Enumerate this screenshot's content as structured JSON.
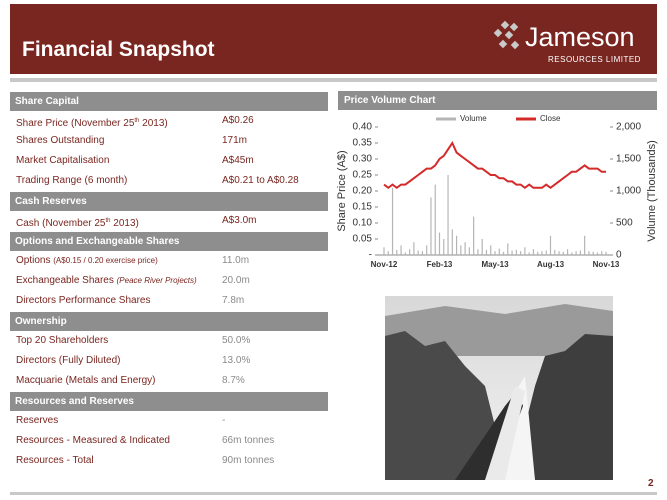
{
  "header": {
    "title": "Financial Snapshot",
    "logo": {
      "name": "Jameson",
      "subtitle": "RESOURCES LIMITED"
    }
  },
  "table": {
    "sections": [
      {
        "title": "Share Capital",
        "rows": [
          {
            "label": [
              "Share Price (November 25",
              "th",
              "  2013)"
            ],
            "value": "A$0.26"
          },
          {
            "label": [
              "Shares Outstanding"
            ],
            "value": "171m"
          },
          {
            "label": [
              "Market Capitalisation"
            ],
            "value": "A$45m"
          },
          {
            "label": [
              "Trading Range (6 month)"
            ],
            "value": "A$0.21 to A$0.28"
          }
        ]
      },
      {
        "title": "Cash Reserves",
        "rows": [
          {
            "label": [
              "Cash  (November 25",
              "th",
              "  2013)"
            ],
            "value": "A$3.0m"
          }
        ]
      },
      {
        "title": "Options and Exchangeable Shares",
        "rows": [
          {
            "label": [
              "Options  ",
              "(A$0.15 / 0.20  exercise price)"
            ],
            "value": "11.0m"
          },
          {
            "label": [
              "Exchangeable Shares ",
              "(Peace River Projects)"
            ],
            "value": "20.0m"
          },
          {
            "label": [
              "Directors Performance Shares"
            ],
            "value": "7.8m"
          }
        ]
      },
      {
        "title": "Ownership",
        "rows": [
          {
            "label": [
              "Top 20 Shareholders"
            ],
            "value": "50.0%"
          },
          {
            "label": [
              "Directors (Fully Diluted)"
            ],
            "value": "13.0%"
          },
          {
            "label": [
              "Macquarie (Metals and Energy)"
            ],
            "value": "8.7%"
          }
        ]
      },
      {
        "title": "Resources and Reserves",
        "rows": [
          {
            "label": [
              "Reserves"
            ],
            "value": "-"
          },
          {
            "label": [
              "Resources -  Measured & Indicated"
            ],
            "value": "66m tonnes"
          },
          {
            "label": [
              "Resources - Total"
            ],
            "value": "90m tonnes"
          }
        ]
      }
    ]
  },
  "chart_data": {
    "type": "line",
    "title": "Price Volume Chart",
    "ylabel": "Share Price (A$)",
    "y2label": "Volume (Thousands)",
    "categories": [
      "Nov-12",
      null,
      null,
      null,
      null,
      null,
      null,
      null,
      null,
      null,
      null,
      null,
      null,
      "Feb-13",
      null,
      null,
      null,
      null,
      null,
      null,
      null,
      null,
      null,
      null,
      null,
      null,
      "May-13",
      null,
      null,
      null,
      null,
      null,
      null,
      null,
      null,
      null,
      null,
      null,
      null,
      "Aug-13",
      null,
      null,
      null,
      null,
      null,
      null,
      null,
      null,
      null,
      null,
      null,
      null,
      "Nov-13"
    ],
    "series": [
      {
        "name": "Volume",
        "color": "#b5b5b5",
        "axis": "y2",
        "type": "bar",
        "values": [
          120,
          60,
          1050,
          80,
          150,
          40,
          90,
          200,
          70,
          60,
          150,
          900,
          1100,
          350,
          250,
          1250,
          400,
          300,
          150,
          200,
          120,
          600,
          90,
          250,
          80,
          150,
          60,
          100,
          50,
          180,
          70,
          80,
          60,
          120,
          40,
          90,
          50,
          60,
          70,
          300,
          80,
          60,
          50,
          90,
          40,
          60,
          70,
          300,
          60,
          50,
          40,
          60,
          50
        ]
      },
      {
        "name": "Close",
        "color": "#d42a2a",
        "values": [
          0.22,
          0.21,
          0.22,
          0.21,
          0.22,
          0.22,
          0.23,
          0.24,
          0.25,
          0.26,
          0.27,
          0.27,
          0.28,
          0.3,
          0.31,
          0.33,
          0.35,
          0.32,
          0.31,
          0.3,
          0.29,
          0.28,
          0.27,
          0.27,
          0.26,
          0.25,
          0.25,
          0.24,
          0.24,
          0.23,
          0.23,
          0.22,
          0.22,
          0.21,
          0.22,
          0.21,
          0.21,
          0.21,
          0.22,
          0.21,
          0.22,
          0.23,
          0.24,
          0.25,
          0.26,
          0.26,
          0.27,
          0.28,
          0.27,
          0.27,
          0.27,
          0.26,
          0.26
        ]
      }
    ],
    "ylim": [
      0,
      0.4
    ],
    "yticks": [
      {
        "value": 0,
        "label": "-"
      },
      0.05,
      {
        "value": 0.1,
        "label": "0.10"
      },
      0.15,
      {
        "value": 0.2,
        "label": "0.20"
      },
      0.25,
      {
        "value": 0.3,
        "label": "0.30"
      },
      0.35,
      {
        "value": 0.4,
        "label": "0.40"
      }
    ],
    "y2lim": [
      0,
      2000
    ],
    "y2ticks": [
      0,
      500,
      {
        "value": 1000,
        "label": "1,000"
      },
      {
        "value": 1500,
        "label": "1,500"
      },
      {
        "value": 2000,
        "label": "2,000"
      }
    ],
    "legend": "top"
  },
  "page_number": "2"
}
